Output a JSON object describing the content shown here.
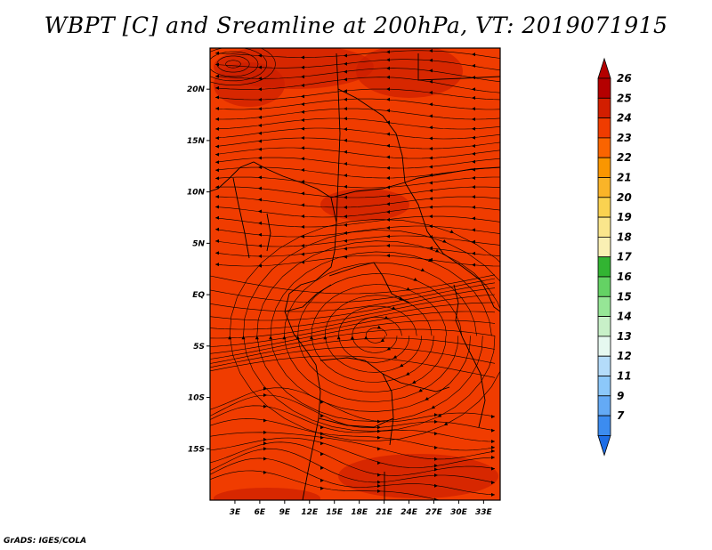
{
  "title": "WBPT [C] and Sreamline at 200hPa, VT: 2019071915",
  "credit": "GrADS: IGES/COLA",
  "map": {
    "lon_range": [
      0,
      35
    ],
    "lat_range": [
      -20,
      24
    ],
    "x_ticks": [
      {
        "value": 3,
        "label": "3E"
      },
      {
        "value": 6,
        "label": "6E"
      },
      {
        "value": 9,
        "label": "9E"
      },
      {
        "value": 12,
        "label": "12E"
      },
      {
        "value": 15,
        "label": "15E"
      },
      {
        "value": 18,
        "label": "18E"
      },
      {
        "value": 21,
        "label": "21E"
      },
      {
        "value": 24,
        "label": "24E"
      },
      {
        "value": 27,
        "label": "27E"
      },
      {
        "value": 30,
        "label": "30E"
      },
      {
        "value": 33,
        "label": "33E"
      }
    ],
    "y_ticks": [
      {
        "value": 20,
        "label": "20N"
      },
      {
        "value": 15,
        "label": "15N"
      },
      {
        "value": 10,
        "label": "10N"
      },
      {
        "value": 5,
        "label": "5N"
      },
      {
        "value": 0,
        "label": "EQ"
      },
      {
        "value": -5,
        "label": "5S"
      },
      {
        "value": -10,
        "label": "10S"
      },
      {
        "value": -15,
        "label": "15S"
      }
    ],
    "field_color": "#f03c00",
    "patch_color": "#cc1e00",
    "streamline_color": "#000000",
    "cyclone_center": {
      "lon": 20,
      "lat": -4
    }
  },
  "colorbar": {
    "levels": [
      {
        "label": "26",
        "color": "#b40000"
      },
      {
        "label": "25",
        "color": "#d21e00"
      },
      {
        "label": "24",
        "color": "#f03c00"
      },
      {
        "label": "23",
        "color": "#fa6400"
      },
      {
        "label": "22",
        "color": "#fa9600"
      },
      {
        "label": "21",
        "color": "#fab428"
      },
      {
        "label": "20",
        "color": "#fad250"
      },
      {
        "label": "19",
        "color": "#fae68c"
      },
      {
        "label": "18",
        "color": "#faf0b4"
      },
      {
        "label": "17",
        "color": "#32b432"
      },
      {
        "label": "16",
        "color": "#64d264"
      },
      {
        "label": "15",
        "color": "#96e696"
      },
      {
        "label": "14",
        "color": "#c8f0c8"
      },
      {
        "label": "13",
        "color": "#e6f8f0"
      },
      {
        "label": "12",
        "color": "#b4dcfa"
      },
      {
        "label": "11",
        "color": "#8cc8fa"
      },
      {
        "label": "9",
        "color": "#64aaf5"
      },
      {
        "label": "7",
        "color": "#3c8cf0"
      }
    ],
    "bottom_color": "#1e6ee6"
  }
}
